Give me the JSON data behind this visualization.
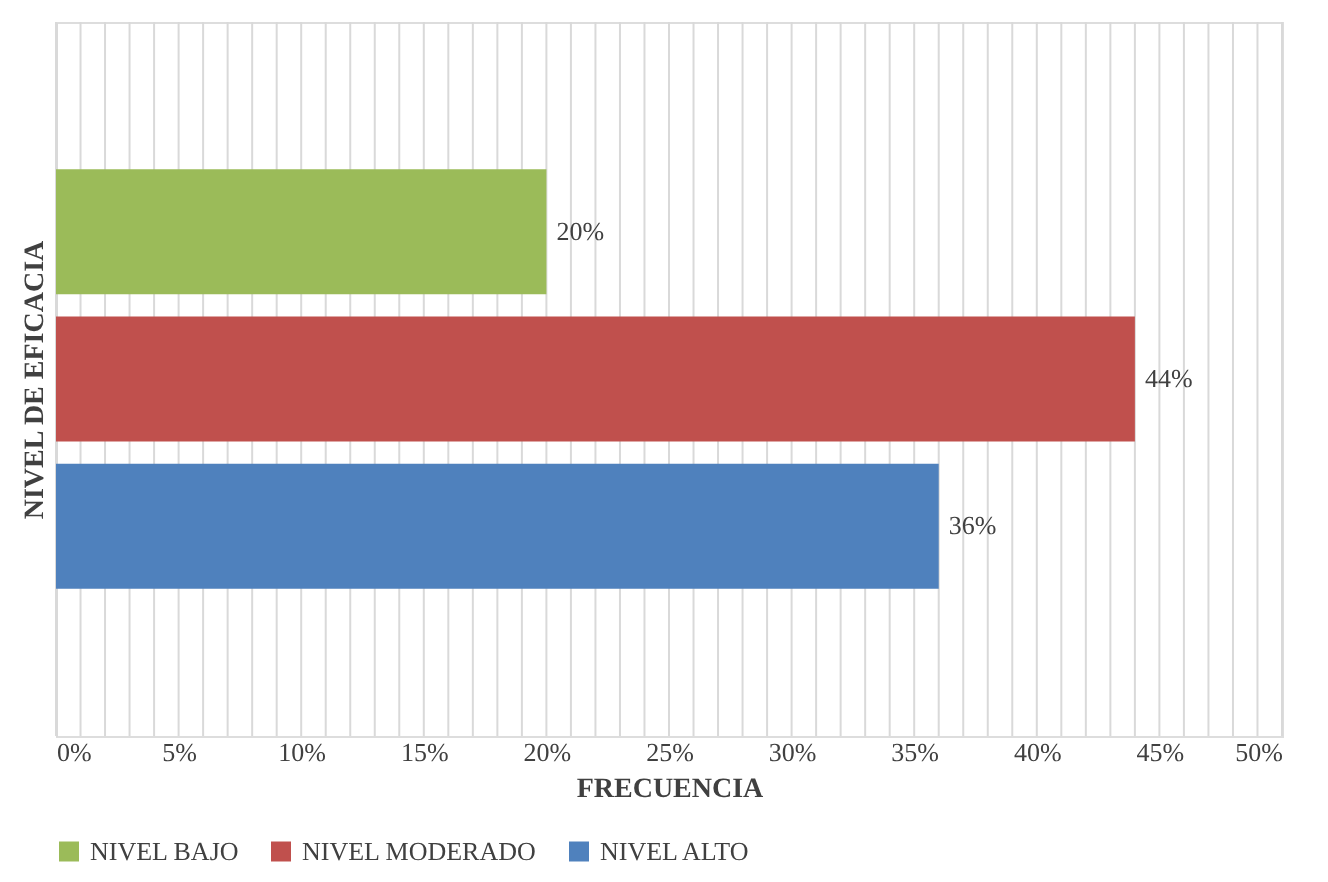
{
  "chart_data": {
    "type": "bar",
    "orientation": "horizontal",
    "xlabel": "FRECUENCIA",
    "ylabel": "NIVEL DE EFICACIA",
    "categories": [
      null,
      null,
      null
    ],
    "series": [
      {
        "name": "NIVEL BAJO",
        "color": "#9bbb59",
        "values": [
          20,
          null,
          null
        ],
        "value_labels": [
          "20%",
          null,
          null
        ]
      },
      {
        "name": "NIVEL MODERADO",
        "color": "#c0504d",
        "values": [
          null,
          44,
          null
        ],
        "value_labels": [
          null,
          "44%",
          null
        ]
      },
      {
        "name": "NIVEL ALTO",
        "color": "#4f81bd",
        "values": [
          null,
          null,
          36
        ],
        "value_labels": [
          null,
          null,
          "36%"
        ]
      }
    ],
    "xlim": [
      0,
      50
    ],
    "xticks": [
      {
        "value": 0,
        "label": "0%"
      },
      {
        "value": 1,
        "label": null
      },
      {
        "value": 2,
        "label": null
      },
      {
        "value": 3,
        "label": null
      },
      {
        "value": 4,
        "label": null
      },
      {
        "value": 5,
        "label": "5%"
      },
      {
        "value": 6,
        "label": null
      },
      {
        "value": 7,
        "label": null
      },
      {
        "value": 8,
        "label": null
      },
      {
        "value": 9,
        "label": null
      },
      {
        "value": 10,
        "label": "10%"
      },
      {
        "value": 11,
        "label": null
      },
      {
        "value": 12,
        "label": null
      },
      {
        "value": 13,
        "label": null
      },
      {
        "value": 14,
        "label": null
      },
      {
        "value": 15,
        "label": "15%"
      },
      {
        "value": 16,
        "label": null
      },
      {
        "value": 17,
        "label": null
      },
      {
        "value": 18,
        "label": null
      },
      {
        "value": 19,
        "label": null
      },
      {
        "value": 20,
        "label": "20%"
      },
      {
        "value": 21,
        "label": null
      },
      {
        "value": 22,
        "label": null
      },
      {
        "value": 23,
        "label": null
      },
      {
        "value": 24,
        "label": null
      },
      {
        "value": 25,
        "label": "25%"
      },
      {
        "value": 26,
        "label": null
      },
      {
        "value": 27,
        "label": null
      },
      {
        "value": 28,
        "label": null
      },
      {
        "value": 29,
        "label": null
      },
      {
        "value": 30,
        "label": "30%"
      },
      {
        "value": 31,
        "label": null
      },
      {
        "value": 32,
        "label": null
      },
      {
        "value": 33,
        "label": null
      },
      {
        "value": 34,
        "label": null
      },
      {
        "value": 35,
        "label": "35%"
      },
      {
        "value": 36,
        "label": null
      },
      {
        "value": 37,
        "label": null
      },
      {
        "value": 38,
        "label": null
      },
      {
        "value": 39,
        "label": null
      },
      {
        "value": 40,
        "label": "40%"
      },
      {
        "value": 41,
        "label": null
      },
      {
        "value": 42,
        "label": null
      },
      {
        "value": 43,
        "label": null
      },
      {
        "value": 44,
        "label": null
      },
      {
        "value": 45,
        "label": "45%"
      },
      {
        "value": 46,
        "label": null
      },
      {
        "value": 47,
        "label": null
      },
      {
        "value": 48,
        "label": null
      },
      {
        "value": 49,
        "label": null
      },
      {
        "value": 50,
        "label": "50%"
      }
    ],
    "grid": "x",
    "legend": "bottom"
  }
}
